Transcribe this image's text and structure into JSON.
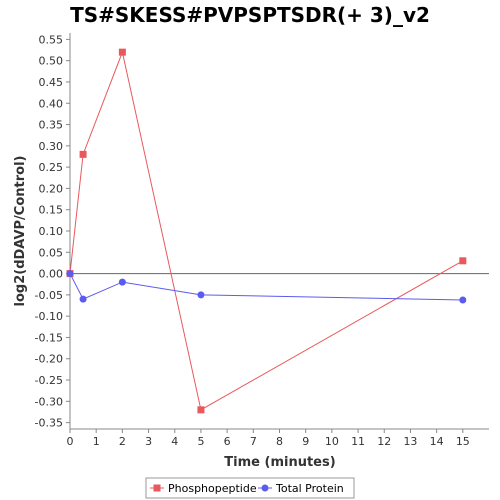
{
  "chart_data": {
    "type": "line",
    "title": "TS#SKESS#PVPSPTSDR(+ 3)_v2",
    "xlabel": "Time (minutes)",
    "ylabel": "log2(dDAVP/Control)",
    "xlim": [
      0,
      16
    ],
    "ylim": [
      -0.365,
      0.565
    ],
    "x_ticks": [
      0,
      1,
      2,
      3,
      4,
      5,
      6,
      7,
      8,
      9,
      10,
      11,
      12,
      13,
      14,
      15
    ],
    "y_ticks": [
      0.55,
      0.5,
      0.45,
      0.4,
      0.35,
      0.3,
      0.25,
      0.2,
      0.15,
      0.1,
      0.05,
      0.0,
      -0.05,
      -0.1,
      -0.15,
      -0.2,
      -0.25,
      -0.3,
      -0.35
    ],
    "y_tick_labels": [
      "0.55",
      "0.50",
      "0.45",
      "0.40",
      "0.35",
      "0.30",
      "0.25",
      "0.20",
      "0.15",
      "0.10",
      "0.05",
      "0.00",
      "-0.05",
      "-0.10",
      "-0.15",
      "-0.20",
      "-0.25",
      "-0.30",
      "-0.35"
    ],
    "zero_line": true,
    "grid": false,
    "legend_position": "bottom",
    "series": [
      {
        "name": "Phosphopeptide",
        "color": "#e8595d",
        "marker": "square",
        "x": [
          0,
          0.5,
          2,
          5,
          15
        ],
        "y": [
          0.0,
          0.28,
          0.52,
          -0.32,
          0.03
        ]
      },
      {
        "name": "Total Protein",
        "color": "#5b5bef",
        "marker": "circle",
        "x": [
          0,
          0.5,
          2,
          5,
          15
        ],
        "y": [
          0.0,
          -0.06,
          -0.02,
          -0.05,
          -0.062
        ]
      }
    ]
  }
}
